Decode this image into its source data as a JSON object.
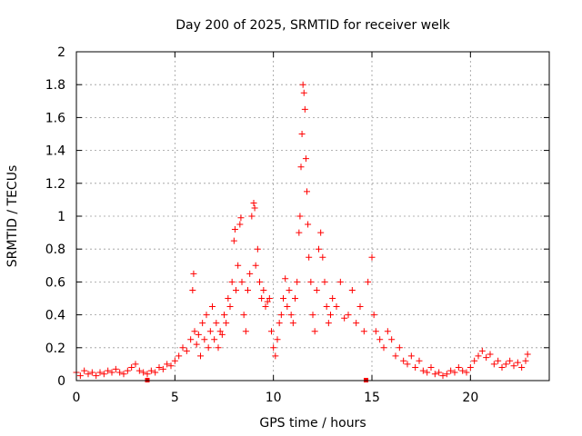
{
  "chart_data": {
    "type": "scatter",
    "title": "Day 200 of 2025, SRMTID for receiver welk",
    "xlabel": "GPS time / hours",
    "ylabel": "SRMTID / TECUs",
    "xlim": [
      0,
      24
    ],
    "ylim": [
      0,
      2
    ],
    "x_ticks": [
      0,
      5,
      10,
      15,
      20
    ],
    "x_tick_labels": [
      "0",
      "5",
      "10",
      "15",
      "20"
    ],
    "y_ticks": [
      0,
      0.2,
      0.4,
      0.6,
      0.8,
      1,
      1.2,
      1.4,
      1.6,
      1.8,
      2
    ],
    "y_tick_labels": [
      "0",
      "0.2",
      "0.4",
      "0.6",
      "0.8",
      "1",
      "1.2",
      "1.4",
      "1.6",
      "1.8",
      "2"
    ],
    "grid": true,
    "marker": "plus",
    "series_color": "#ff0000",
    "markers_on_axis": [
      3.6,
      14.7
    ],
    "series": [
      {
        "name": "SRMTID",
        "points": [
          [
            0.0,
            0.05
          ],
          [
            0.2,
            0.03
          ],
          [
            0.4,
            0.06
          ],
          [
            0.6,
            0.04
          ],
          [
            0.8,
            0.05
          ],
          [
            1.0,
            0.03
          ],
          [
            1.2,
            0.05
          ],
          [
            1.4,
            0.04
          ],
          [
            1.6,
            0.06
          ],
          [
            1.8,
            0.05
          ],
          [
            2.0,
            0.07
          ],
          [
            2.2,
            0.05
          ],
          [
            2.4,
            0.04
          ],
          [
            2.6,
            0.06
          ],
          [
            2.8,
            0.08
          ],
          [
            3.0,
            0.1
          ],
          [
            3.2,
            0.06
          ],
          [
            3.4,
            0.05
          ],
          [
            3.6,
            0.04
          ],
          [
            3.8,
            0.06
          ],
          [
            4.0,
            0.05
          ],
          [
            4.2,
            0.08
          ],
          [
            4.4,
            0.07
          ],
          [
            4.6,
            0.1
          ],
          [
            4.8,
            0.09
          ],
          [
            5.0,
            0.12
          ],
          [
            5.2,
            0.15
          ],
          [
            5.4,
            0.2
          ],
          [
            5.6,
            0.18
          ],
          [
            5.8,
            0.25
          ],
          [
            5.9,
            0.55
          ],
          [
            5.95,
            0.65
          ],
          [
            6.0,
            0.3
          ],
          [
            6.1,
            0.22
          ],
          [
            6.2,
            0.28
          ],
          [
            6.3,
            0.15
          ],
          [
            6.4,
            0.35
          ],
          [
            6.5,
            0.25
          ],
          [
            6.6,
            0.4
          ],
          [
            6.7,
            0.2
          ],
          [
            6.8,
            0.3
          ],
          [
            6.9,
            0.45
          ],
          [
            7.0,
            0.25
          ],
          [
            7.1,
            0.35
          ],
          [
            7.2,
            0.2
          ],
          [
            7.3,
            0.3
          ],
          [
            7.4,
            0.28
          ],
          [
            7.5,
            0.4
          ],
          [
            7.6,
            0.35
          ],
          [
            7.7,
            0.5
          ],
          [
            7.8,
            0.45
          ],
          [
            7.9,
            0.6
          ],
          [
            8.0,
            0.85
          ],
          [
            8.05,
            0.92
          ],
          [
            8.1,
            0.55
          ],
          [
            8.2,
            0.7
          ],
          [
            8.3,
            0.95
          ],
          [
            8.35,
            0.99
          ],
          [
            8.4,
            0.6
          ],
          [
            8.5,
            0.4
          ],
          [
            8.6,
            0.3
          ],
          [
            8.7,
            0.55
          ],
          [
            8.8,
            0.65
          ],
          [
            8.9,
            1.0
          ],
          [
            9.0,
            1.08
          ],
          [
            9.05,
            1.05
          ],
          [
            9.1,
            0.7
          ],
          [
            9.2,
            0.8
          ],
          [
            9.3,
            0.6
          ],
          [
            9.4,
            0.5
          ],
          [
            9.5,
            0.55
          ],
          [
            9.6,
            0.45
          ],
          [
            9.7,
            0.48
          ],
          [
            9.8,
            0.5
          ],
          [
            9.9,
            0.3
          ],
          [
            10.0,
            0.2
          ],
          [
            10.1,
            0.15
          ],
          [
            10.2,
            0.25
          ],
          [
            10.3,
            0.35
          ],
          [
            10.4,
            0.4
          ],
          [
            10.5,
            0.5
          ],
          [
            10.6,
            0.62
          ],
          [
            10.7,
            0.45
          ],
          [
            10.8,
            0.55
          ],
          [
            10.9,
            0.4
          ],
          [
            11.0,
            0.35
          ],
          [
            11.1,
            0.5
          ],
          [
            11.2,
            0.6
          ],
          [
            11.3,
            0.9
          ],
          [
            11.35,
            1.0
          ],
          [
            11.4,
            1.3
          ],
          [
            11.45,
            1.5
          ],
          [
            11.5,
            1.8
          ],
          [
            11.55,
            1.75
          ],
          [
            11.6,
            1.65
          ],
          [
            11.65,
            1.35
          ],
          [
            11.7,
            1.15
          ],
          [
            11.75,
            0.95
          ],
          [
            11.8,
            0.75
          ],
          [
            11.9,
            0.6
          ],
          [
            12.0,
            0.4
          ],
          [
            12.1,
            0.3
          ],
          [
            12.2,
            0.55
          ],
          [
            12.3,
            0.8
          ],
          [
            12.4,
            0.9
          ],
          [
            12.5,
            0.75
          ],
          [
            12.6,
            0.6
          ],
          [
            12.7,
            0.45
          ],
          [
            12.8,
            0.35
          ],
          [
            12.9,
            0.4
          ],
          [
            13.0,
            0.5
          ],
          [
            13.2,
            0.45
          ],
          [
            13.4,
            0.6
          ],
          [
            13.6,
            0.38
          ],
          [
            13.8,
            0.4
          ],
          [
            14.0,
            0.55
          ],
          [
            14.2,
            0.35
          ],
          [
            14.4,
            0.45
          ],
          [
            14.6,
            0.3
          ],
          [
            14.8,
            0.6
          ],
          [
            15.0,
            0.75
          ],
          [
            15.1,
            0.4
          ],
          [
            15.2,
            0.3
          ],
          [
            15.4,
            0.25
          ],
          [
            15.6,
            0.2
          ],
          [
            15.8,
            0.3
          ],
          [
            16.0,
            0.25
          ],
          [
            16.2,
            0.15
          ],
          [
            16.4,
            0.2
          ],
          [
            16.6,
            0.12
          ],
          [
            16.8,
            0.1
          ],
          [
            17.0,
            0.15
          ],
          [
            17.2,
            0.08
          ],
          [
            17.4,
            0.12
          ],
          [
            17.6,
            0.06
          ],
          [
            17.8,
            0.05
          ],
          [
            18.0,
            0.08
          ],
          [
            18.2,
            0.04
          ],
          [
            18.4,
            0.05
          ],
          [
            18.6,
            0.03
          ],
          [
            18.8,
            0.04
          ],
          [
            19.0,
            0.06
          ],
          [
            19.2,
            0.05
          ],
          [
            19.4,
            0.08
          ],
          [
            19.6,
            0.06
          ],
          [
            19.8,
            0.05
          ],
          [
            20.0,
            0.08
          ],
          [
            20.2,
            0.12
          ],
          [
            20.4,
            0.15
          ],
          [
            20.6,
            0.18
          ],
          [
            20.8,
            0.14
          ],
          [
            21.0,
            0.16
          ],
          [
            21.2,
            0.1
          ],
          [
            21.4,
            0.12
          ],
          [
            21.6,
            0.08
          ],
          [
            21.8,
            0.1
          ],
          [
            22.0,
            0.12
          ],
          [
            22.2,
            0.09
          ],
          [
            22.4,
            0.11
          ],
          [
            22.6,
            0.08
          ],
          [
            22.8,
            0.12
          ],
          [
            22.9,
            0.16
          ]
        ]
      }
    ]
  }
}
